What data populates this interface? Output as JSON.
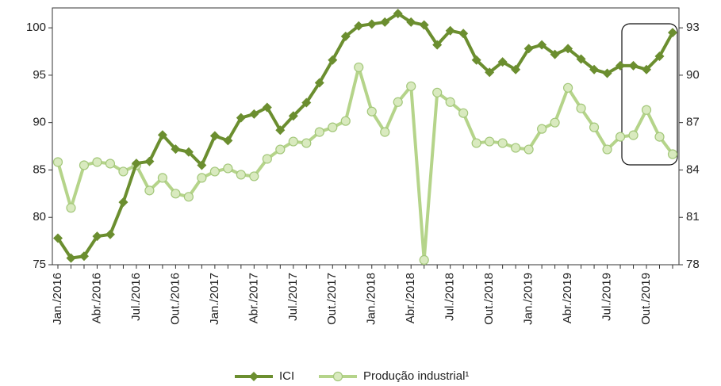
{
  "chart_data": {
    "type": "line",
    "categories": [
      "Jan./2016",
      null,
      null,
      "Abr./2016",
      null,
      null,
      "Jul./2016",
      null,
      null,
      "Out./2016",
      null,
      null,
      "Jan./2017",
      null,
      null,
      "Abr./2017",
      null,
      null,
      "Jul./2017",
      null,
      null,
      "Out./2017",
      null,
      null,
      "Jan./2018",
      null,
      null,
      "Abr./2018",
      null,
      null,
      "Jul./2018",
      null,
      null,
      "Out./2018",
      null,
      null,
      "Jan./2019",
      null,
      null,
      "Abr./2019",
      null,
      null,
      "Jul./2019",
      null,
      null,
      "Out./2019",
      null,
      null
    ],
    "series": [
      {
        "name": "ICI",
        "color": "#6b8e2f",
        "marker": "diamond",
        "values": [
          77.8,
          75.7,
          75.9,
          78.0,
          78.2,
          81.6,
          85.7,
          85.9,
          88.7,
          87.2,
          86.9,
          85.5,
          88.6,
          88.1,
          90.5,
          90.9,
          91.6,
          89.2,
          90.7,
          92.1,
          94.2,
          96.6,
          99.1,
          100.2,
          100.4,
          100.6,
          101.5,
          100.6,
          100.3,
          98.2,
          99.7,
          99.4,
          96.6,
          95.3,
          96.4,
          95.6,
          97.8,
          98.2,
          97.2,
          97.8,
          96.7,
          95.6,
          95.2,
          96.0,
          96.0,
          95.6,
          97.0,
          99.5
        ]
      },
      {
        "name": "Produção industrial¹",
        "color": "#b5d48a",
        "marker": "circle",
        "axis": "y2",
        "values": [
          84.5,
          81.6,
          84.3,
          84.5,
          84.4,
          83.9,
          84.3,
          82.7,
          83.5,
          82.5,
          82.3,
          83.5,
          83.9,
          84.1,
          83.7,
          83.6,
          84.7,
          85.3,
          85.8,
          85.7,
          86.4,
          86.7,
          87.1,
          90.5,
          87.7,
          86.4,
          88.3,
          89.3,
          78.3,
          88.9,
          88.3,
          87.6,
          85.7,
          85.8,
          85.7,
          85.4,
          85.3,
          86.6,
          87.0,
          89.2,
          87.9,
          86.7,
          85.3,
          86.1,
          86.2,
          87.8,
          86.1,
          85.0
        ]
      }
    ],
    "ylim": [
      75,
      102.1
    ],
    "yticks": [
      75,
      80,
      85,
      90,
      95,
      100
    ],
    "y2lim": [
      78,
      94.26
    ],
    "y2ticks": [
      78,
      81,
      84,
      87,
      90,
      93
    ]
  }
}
